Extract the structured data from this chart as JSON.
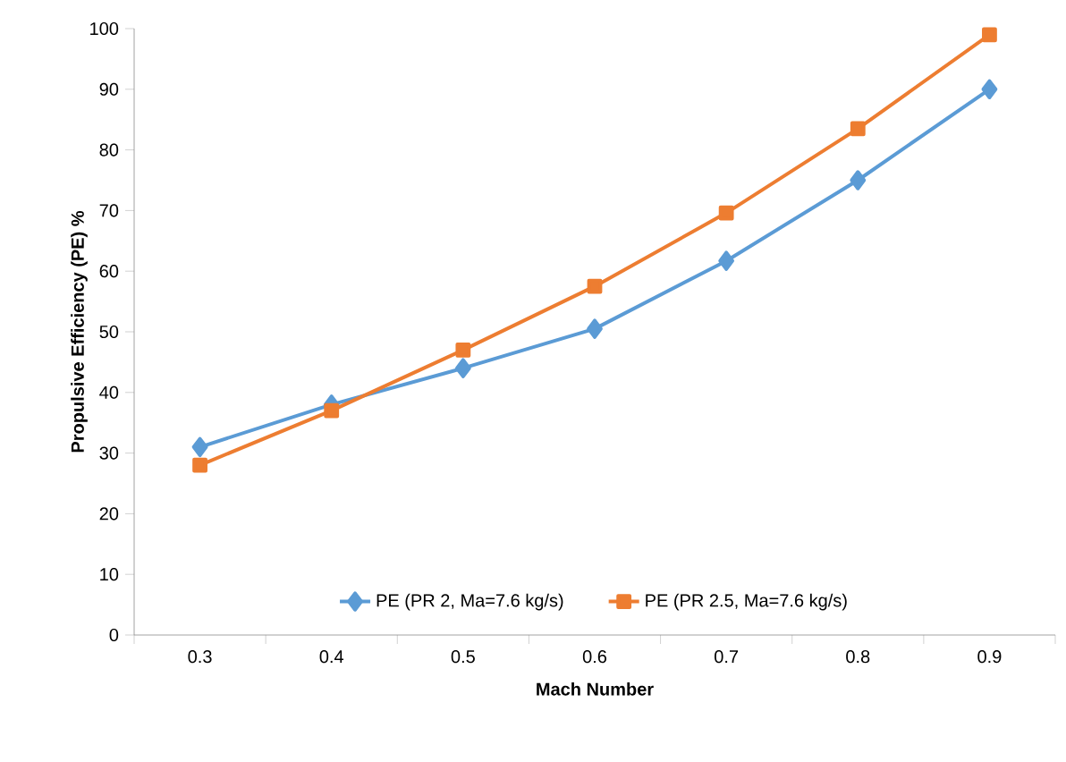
{
  "chart_data": {
    "type": "line",
    "xlabel": "Mach Number",
    "ylabel": "Propulsive Efficiency  (PE) %",
    "categories": [
      "0.3",
      "0.4",
      "0.5",
      "0.6",
      "0.7",
      "0.8",
      "0.9"
    ],
    "series": [
      {
        "name": "PE (PR 2, Ma=7.6 kg/s)",
        "color": "#5b9bd5",
        "marker": "diamond",
        "values": [
          31,
          38,
          44,
          50.5,
          61.7,
          75,
          90
        ]
      },
      {
        "name": "PE (PR 2.5, Ma=7.6 kg/s)",
        "color": "#ed7d31",
        "marker": "square",
        "values": [
          28,
          37,
          47,
          57.5,
          69.6,
          83.5,
          99
        ]
      }
    ],
    "ylim": [
      0,
      100
    ],
    "yticks": [
      0,
      10,
      20,
      30,
      40,
      50,
      60,
      70,
      80,
      90,
      100
    ],
    "grid": false,
    "legend": "bottom",
    "line_style": "solid"
  }
}
